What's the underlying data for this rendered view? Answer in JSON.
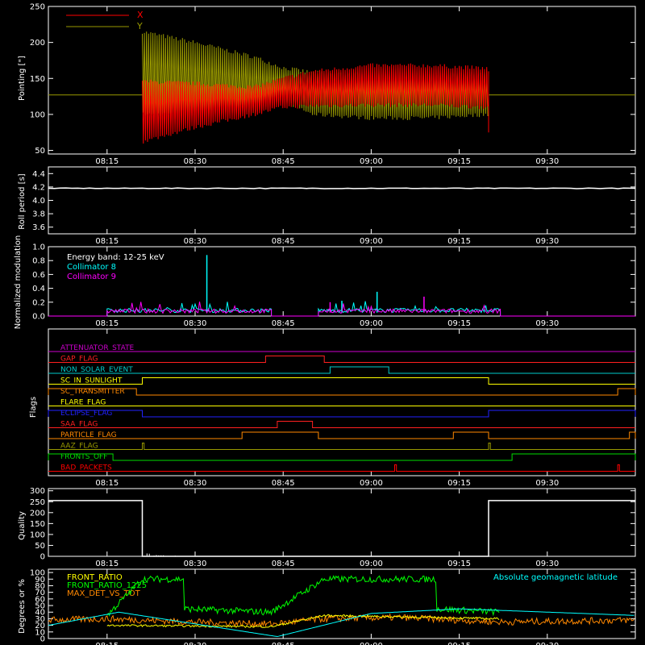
{
  "theme": {
    "background": "#000000",
    "frame": "#ffffff"
  },
  "time_axis": {
    "start": "08:05",
    "end": "09:45",
    "ticks": [
      "08:15",
      "08:30",
      "08:45",
      "09:00",
      "09:15",
      "09:30"
    ]
  },
  "chart_data": [
    {
      "id": "pointing",
      "type": "line",
      "ylabel": "Pointing [\"]",
      "ylim": [
        45,
        250
      ],
      "yticks": [
        50,
        100,
        150,
        200,
        250
      ],
      "legend": {
        "placement": "top-left",
        "entries": [
          {
            "name": "X",
            "color": "#ff0000"
          },
          {
            "name": "Y",
            "color": "#999900"
          }
        ]
      },
      "baseline": 127,
      "active_span": [
        "08:21",
        "09:20"
      ],
      "series": [
        {
          "name": "X",
          "color": "#ff0000",
          "x": [
            "08:21",
            "08:30",
            "08:40",
            "08:45",
            "08:50",
            "09:00",
            "09:10",
            "09:20"
          ],
          "upper": [
            146,
            143,
            138,
            150,
            160,
            168,
            168,
            164
          ],
          "lower": [
            62,
            82,
            100,
            110,
            112,
            113,
            113,
            110
          ]
        },
        {
          "name": "Y",
          "color": "#999900",
          "x": [
            "08:21",
            "08:30",
            "08:40",
            "08:45",
            "08:50",
            "09:00",
            "09:10",
            "09:20"
          ],
          "upper": [
            215,
            200,
            180,
            165,
            158,
            155,
            155,
            157
          ],
          "lower": [
            100,
            100,
            105,
            120,
            100,
            95,
            95,
            100
          ]
        }
      ]
    },
    {
      "id": "roll",
      "type": "line",
      "ylabel": "Roll period [s]",
      "ylim": [
        3.5,
        4.5
      ],
      "yticks": [
        3.6,
        3.8,
        4.0,
        4.2,
        4.4
      ],
      "series": [
        {
          "name": "roll",
          "color": "#ffffff",
          "x": [
            "08:05",
            "09:45"
          ],
          "values": [
            4.18,
            4.18
          ]
        }
      ]
    },
    {
      "id": "modulation",
      "type": "line",
      "ylabel": "Normalized modulation",
      "ylim": [
        0,
        1.0
      ],
      "yticks": [
        0.0,
        0.2,
        0.4,
        0.6,
        0.8,
        1.0
      ],
      "annotation": "Energy band: 12-25 keV",
      "legend": {
        "placement": "top-left",
        "entries": [
          {
            "name": "Collimator 8",
            "color": "#00ffff"
          },
          {
            "name": "Collimator 9",
            "color": "#ff00ff"
          }
        ]
      },
      "segments": [
        [
          "08:15",
          "08:43"
        ],
        [
          "08:51",
          "09:22"
        ]
      ],
      "series": [
        {
          "name": "Collimator 8",
          "color": "#00ffff",
          "typical": 0.07,
          "spikes": [
            {
              "x": "08:32",
              "y": 0.88
            },
            {
              "x": "09:01",
              "y": 0.35
            },
            {
              "x": "08:55",
              "y": 0.22
            }
          ]
        },
        {
          "name": "Collimator 9",
          "color": "#ff00ff",
          "typical": 0.06,
          "spikes": [
            {
              "x": "09:09",
              "y": 0.28
            },
            {
              "x": "08:53",
              "y": 0.2
            }
          ]
        }
      ]
    },
    {
      "id": "flags",
      "type": "line",
      "ylabel": "Flags",
      "rows": [
        {
          "name": "ATTENUATOR_STATE",
          "color": "#cc00cc",
          "high": []
        },
        {
          "name": "GAP_FLAG",
          "color": "#ff2020",
          "high": [
            [
              "08:42",
              "08:52"
            ]
          ]
        },
        {
          "name": "NON_SOLAR_EVENT",
          "color": "#00cccc",
          "high": [
            [
              "08:53",
              "09:03"
            ]
          ]
        },
        {
          "name": "SC_IN_SUNLIGHT",
          "color": "#ffff00",
          "high": [
            [
              "08:21",
              "09:20"
            ]
          ]
        },
        {
          "name": "SC_TRANSMITTER",
          "color": "#ff8800",
          "high": [
            [
              "08:05",
              "08:20"
            ],
            [
              "09:42",
              "09:45"
            ]
          ]
        },
        {
          "name": "FLARE_FLAG",
          "color": "#ffff00",
          "high": []
        },
        {
          "name": "ECLIPSE_FLAG",
          "color": "#2222ff",
          "high": [
            [
              "08:05",
              "08:21"
            ],
            [
              "09:20",
              "09:45"
            ]
          ]
        },
        {
          "name": "SAA_FLAG",
          "color": "#ff2020",
          "high": [
            [
              "08:44",
              "08:50"
            ]
          ]
        },
        {
          "name": "PARTICLE_FLAG",
          "color": "#ff8800",
          "high": [
            [
              "08:38",
              "08:51"
            ],
            [
              "09:14",
              "09:20"
            ],
            [
              "09:44",
              "09:45"
            ]
          ]
        },
        {
          "name": "AAZ_FLAG",
          "color": "#999900",
          "high": [
            [
              "08:21",
              "08:21.3"
            ],
            [
              "09:20",
              "09:20.3"
            ]
          ]
        },
        {
          "name": "FRONTS_OFF",
          "color": "#00dd00",
          "high": [
            [
              "08:05",
              "08:16"
            ],
            [
              "09:24",
              "09:45"
            ]
          ]
        },
        {
          "name": "BAD_PACKETS",
          "color": "#ff0000",
          "high": [
            [
              "09:04",
              "09:04.3"
            ],
            [
              "09:42",
              "09:42.3"
            ]
          ]
        }
      ]
    },
    {
      "id": "quality",
      "type": "line",
      "ylabel": "Quality",
      "ylim": [
        0,
        310
      ],
      "yticks": [
        0,
        50,
        100,
        150,
        200,
        250,
        300
      ],
      "series": [
        {
          "name": "quality",
          "color": "#ffffff",
          "x": [
            "08:05",
            "08:21",
            "08:21",
            "09:20",
            "09:20",
            "09:45"
          ],
          "values": [
            255,
            255,
            0,
            0,
            255,
            255
          ]
        }
      ]
    },
    {
      "id": "ratios",
      "type": "line",
      "ylabel": "Degrees or %",
      "ylim": [
        0,
        105
      ],
      "yticks": [
        0,
        10,
        20,
        30,
        40,
        50,
        60,
        70,
        80,
        90,
        100
      ],
      "legend": {
        "placement": "top-left",
        "entries": [
          {
            "name": "FRONT_RATIO",
            "color": "#ffff00"
          },
          {
            "name": "FRONT_RATIO_1225",
            "color": "#00ff00"
          },
          {
            "name": "MAX_DET_VS_TOT",
            "color": "#ff8800"
          }
        ]
      },
      "annotation": "Absolute geomagnetic latitude",
      "annotation_color": "#00ffff",
      "series": [
        {
          "name": "FRONT_RATIO_1225",
          "color": "#00ff00",
          "x": [
            "08:15",
            "08:21",
            "08:21",
            "08:28",
            "08:28",
            "08:43",
            "08:52",
            "08:52",
            "09:11",
            "09:11",
            "09:22"
          ],
          "values": [
            35,
            90,
            90,
            90,
            45,
            40,
            90,
            90,
            90,
            45,
            40
          ]
        },
        {
          "name": "MAX_DET_VS_TOT",
          "color": "#ff8800",
          "x": [
            "08:05",
            "08:15",
            "08:30",
            "08:43",
            "08:52",
            "09:05",
            "09:22",
            "09:45"
          ],
          "values": [
            28,
            30,
            25,
            22,
            30,
            32,
            25,
            28
          ]
        },
        {
          "name": "FRONT_RATIO",
          "color": "#ffff00",
          "x": [
            "08:15",
            "08:43",
            "08:52",
            "09:22"
          ],
          "values": [
            20,
            18,
            35,
            30
          ]
        },
        {
          "name": "Absolute geomagnetic latitude",
          "color": "#00ffff",
          "x": [
            "08:05",
            "08:17",
            "08:44",
            "09:00",
            "09:15",
            "09:45"
          ],
          "values": [
            20,
            40,
            3,
            38,
            45,
            35
          ]
        }
      ]
    }
  ]
}
